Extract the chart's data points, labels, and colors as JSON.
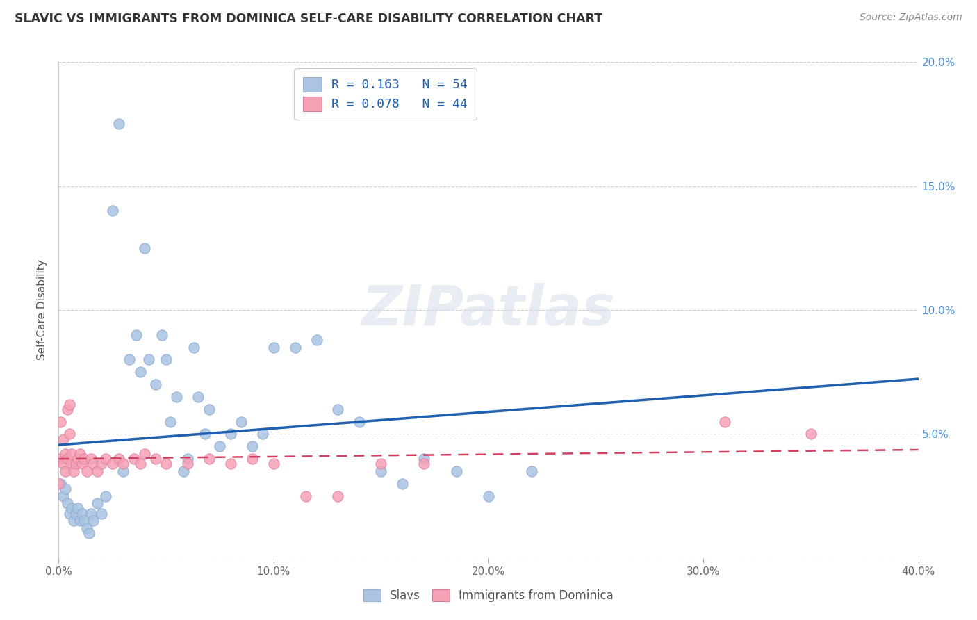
{
  "title": "SLAVIC VS IMMIGRANTS FROM DOMINICA SELF-CARE DISABILITY CORRELATION CHART",
  "source": "Source: ZipAtlas.com",
  "ylabel": "Self-Care Disability",
  "xlim": [
    0,
    0.4
  ],
  "ylim": [
    0,
    0.2
  ],
  "xticks": [
    0.0,
    0.1,
    0.2,
    0.3,
    0.4
  ],
  "yticks": [
    0.0,
    0.05,
    0.1,
    0.15,
    0.2
  ],
  "xtick_labels": [
    "0.0%",
    "10.0%",
    "20.0%",
    "30.0%",
    "40.0%"
  ],
  "ytick_labels": [
    "",
    "5.0%",
    "10.0%",
    "15.0%",
    "20.0%"
  ],
  "legend_labels": [
    "Slavs",
    "Immigrants from Dominica"
  ],
  "R_slavic": 0.163,
  "N_slavic": 54,
  "R_dominica": 0.078,
  "N_dominica": 44,
  "slavic_color": "#aac4e2",
  "dominica_color": "#f5a0b5",
  "slavic_line_color": "#2060b0",
  "dominica_line_color": "#d04060",
  "background_color": "#ffffff",
  "grid_color": "#c8c8c8",
  "watermark": "ZIPatlas",
  "slavic_x": [
    0.001,
    0.002,
    0.003,
    0.004,
    0.005,
    0.006,
    0.007,
    0.008,
    0.009,
    0.01,
    0.011,
    0.012,
    0.013,
    0.014,
    0.015,
    0.016,
    0.018,
    0.02,
    0.022,
    0.025,
    0.028,
    0.03,
    0.033,
    0.036,
    0.038,
    0.04,
    0.042,
    0.045,
    0.048,
    0.05,
    0.052,
    0.055,
    0.058,
    0.06,
    0.063,
    0.065,
    0.068,
    0.07,
    0.075,
    0.08,
    0.085,
    0.09,
    0.095,
    0.1,
    0.11,
    0.12,
    0.13,
    0.14,
    0.15,
    0.16,
    0.17,
    0.185,
    0.2,
    0.22
  ],
  "slavic_y": [
    0.03,
    0.025,
    0.028,
    0.022,
    0.018,
    0.02,
    0.015,
    0.018,
    0.02,
    0.015,
    0.018,
    0.015,
    0.012,
    0.01,
    0.018,
    0.015,
    0.022,
    0.018,
    0.025,
    0.14,
    0.175,
    0.035,
    0.08,
    0.09,
    0.075,
    0.125,
    0.08,
    0.07,
    0.09,
    0.08,
    0.055,
    0.065,
    0.035,
    0.04,
    0.085,
    0.065,
    0.05,
    0.06,
    0.045,
    0.05,
    0.055,
    0.045,
    0.05,
    0.085,
    0.085,
    0.088,
    0.06,
    0.055,
    0.035,
    0.03,
    0.04,
    0.035,
    0.025,
    0.035
  ],
  "dominica_x": [
    0.0,
    0.001,
    0.001,
    0.002,
    0.002,
    0.003,
    0.003,
    0.004,
    0.004,
    0.005,
    0.005,
    0.006,
    0.006,
    0.007,
    0.008,
    0.009,
    0.01,
    0.011,
    0.012,
    0.013,
    0.015,
    0.016,
    0.018,
    0.02,
    0.022,
    0.025,
    0.028,
    0.03,
    0.035,
    0.038,
    0.04,
    0.045,
    0.05,
    0.06,
    0.07,
    0.08,
    0.09,
    0.1,
    0.115,
    0.13,
    0.15,
    0.17,
    0.31,
    0.35
  ],
  "dominica_y": [
    0.03,
    0.04,
    0.055,
    0.038,
    0.048,
    0.035,
    0.042,
    0.04,
    0.06,
    0.05,
    0.062,
    0.038,
    0.042,
    0.035,
    0.038,
    0.04,
    0.042,
    0.038,
    0.04,
    0.035,
    0.04,
    0.038,
    0.035,
    0.038,
    0.04,
    0.038,
    0.04,
    0.038,
    0.04,
    0.038,
    0.042,
    0.04,
    0.038,
    0.038,
    0.04,
    0.038,
    0.04,
    0.038,
    0.025,
    0.025,
    0.038,
    0.038,
    0.055,
    0.05
  ]
}
